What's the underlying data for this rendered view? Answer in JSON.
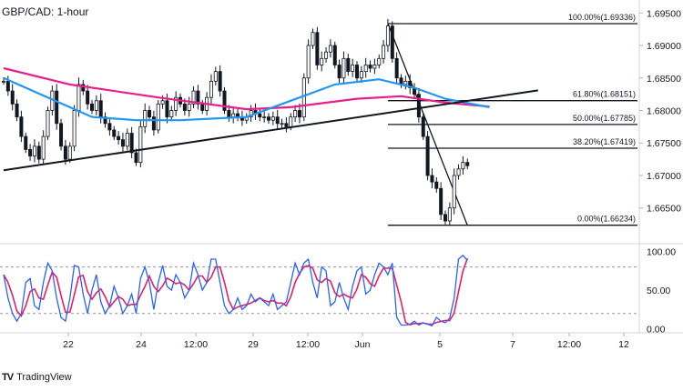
{
  "header": {
    "title": "GBP/CAD: 1-hour"
  },
  "footer": {
    "logo": "TV",
    "brand": "TradingView"
  },
  "colors": {
    "ma_pink": "#e91e8c",
    "ma_blue": "#2196f3",
    "candle": "#131722",
    "fib_line": "#131722",
    "stoch_k": "#2962ff",
    "stoch_d": "#e91e63"
  },
  "chart_data": [
    {
      "type": "candlestick",
      "title": "GBP/CAD: 1-hour",
      "xlabel": "",
      "ylabel": "",
      "ylim": [
        1.6595,
        1.697
      ],
      "x_ticks": [
        "22",
        "24",
        "12:00",
        "29",
        "12:00",
        "Jun",
        "5",
        "7",
        "12:00",
        "12"
      ],
      "y_ticks": [
        1.695,
        1.69,
        1.685,
        1.68,
        1.675,
        1.67,
        1.665
      ],
      "y_tick_labels": [
        "1.69500",
        "1.69000",
        "1.68500",
        "1.68000",
        "1.67500",
        "1.67000",
        "1.66500"
      ],
      "price_series": [
        1.6845,
        1.683,
        1.681,
        1.679,
        1.676,
        1.674,
        1.673,
        1.6745,
        1.6725,
        1.676,
        1.68,
        1.683,
        1.678,
        1.6745,
        1.6725,
        1.6745,
        1.68,
        1.684,
        1.683,
        1.681,
        1.68,
        1.6815,
        1.679,
        1.678,
        1.677,
        1.676,
        1.6755,
        1.6745,
        1.6765,
        1.6735,
        1.672,
        1.6775,
        1.68,
        1.679,
        1.677,
        1.681,
        1.6815,
        1.679,
        1.68,
        1.682,
        1.681,
        1.68,
        1.681,
        1.683,
        1.681,
        1.68,
        1.682,
        1.6845,
        1.686,
        1.683,
        1.68,
        1.679,
        1.6795,
        1.679,
        1.6785,
        1.679,
        1.68,
        1.6795,
        1.679,
        1.679,
        1.6785,
        1.679,
        1.678,
        1.678,
        1.6775,
        1.679,
        1.68,
        1.679,
        1.685,
        1.69,
        1.692,
        1.687,
        1.688,
        1.689,
        1.69,
        1.687,
        1.685,
        1.688,
        1.686,
        1.687,
        1.685,
        1.686,
        1.687,
        1.6865,
        1.687,
        1.688,
        1.69,
        1.693,
        1.688,
        1.685,
        1.684,
        1.6845,
        1.6835,
        1.6825,
        1.679,
        1.676,
        1.67,
        1.669,
        1.668,
        1.664,
        1.663,
        1.665,
        1.67,
        1.671,
        1.672,
        1.6715
      ],
      "moving_averages": [
        {
          "name": "ma-pink",
          "color": "#e91e8c",
          "points": [
            [
              0,
              1.6865
            ],
            [
              15,
              1.684
            ],
            [
              35,
              1.682
            ],
            [
              55,
              1.6802
            ],
            [
              65,
              1.6805
            ],
            [
              80,
              1.6818
            ],
            [
              90,
              1.6822
            ],
            [
              100,
              1.6812
            ],
            [
              110,
              1.6806
            ]
          ]
        },
        {
          "name": "ma-blue",
          "color": "#2196f3",
          "points": [
            [
              0,
              1.685
            ],
            [
              10,
              1.682
            ],
            [
              20,
              1.679
            ],
            [
              30,
              1.6785
            ],
            [
              40,
              1.6785
            ],
            [
              55,
              1.679
            ],
            [
              65,
              1.6815
            ],
            [
              75,
              1.684
            ],
            [
              85,
              1.6848
            ],
            [
              93,
              1.6835
            ],
            [
              100,
              1.6818
            ],
            [
              110,
              1.6805
            ]
          ]
        }
      ],
      "trendline": {
        "from": [
          0,
          1.6708
        ],
        "to": [
          121,
          1.6831
        ]
      },
      "fib_top_anchor": {
        "index": 87,
        "value": 1.69336
      },
      "fib_low_anchor": {
        "index": 105,
        "value": 1.66234
      },
      "fibonacci_levels": [
        {
          "label": "100.00%(1.69336)",
          "value": 1.69336
        },
        {
          "label": "61.80%(1.68151)",
          "value": 1.68151
        },
        {
          "label": "50.00%(1.67785)",
          "value": 1.67785
        },
        {
          "label": "38.20%(1.67419)",
          "value": 1.67419
        },
        {
          "label": "0.00%(1.66234)",
          "value": 1.66234
        }
      ]
    },
    {
      "type": "line",
      "title": "",
      "ylim": [
        -5,
        110
      ],
      "y_ticks": [
        100,
        50,
        0
      ],
      "y_tick_labels": [
        "100.00",
        "50.00",
        "0.00"
      ],
      "reference_levels": [
        80,
        20
      ],
      "series": [
        {
          "name": "",
          "values": [
            70,
            40,
            20,
            10,
            20,
            60,
            65,
            30,
            25,
            60,
            85,
            75,
            40,
            15,
            10,
            40,
            82,
            80,
            45,
            20,
            50,
            70,
            35,
            20,
            30,
            55,
            40,
            20,
            30,
            45,
            20,
            65,
            80,
            60,
            25,
            60,
            82,
            55,
            50,
            70,
            60,
            40,
            50,
            85,
            70,
            50,
            60,
            90,
            90,
            60,
            30,
            20,
            25,
            40,
            25,
            30,
            45,
            35,
            40,
            35,
            30,
            45,
            25,
            30,
            35,
            60,
            85,
            70,
            85,
            90,
            60,
            40,
            80,
            75,
            30,
            35,
            60,
            40,
            25,
            55,
            75,
            80,
            45,
            50,
            70,
            85,
            80,
            70,
            85,
            15,
            5,
            5,
            6,
            10,
            5,
            8,
            6,
            4,
            15,
            10,
            8,
            14,
            40,
            90,
            95,
            88
          ]
        }
      ]
    }
  ]
}
